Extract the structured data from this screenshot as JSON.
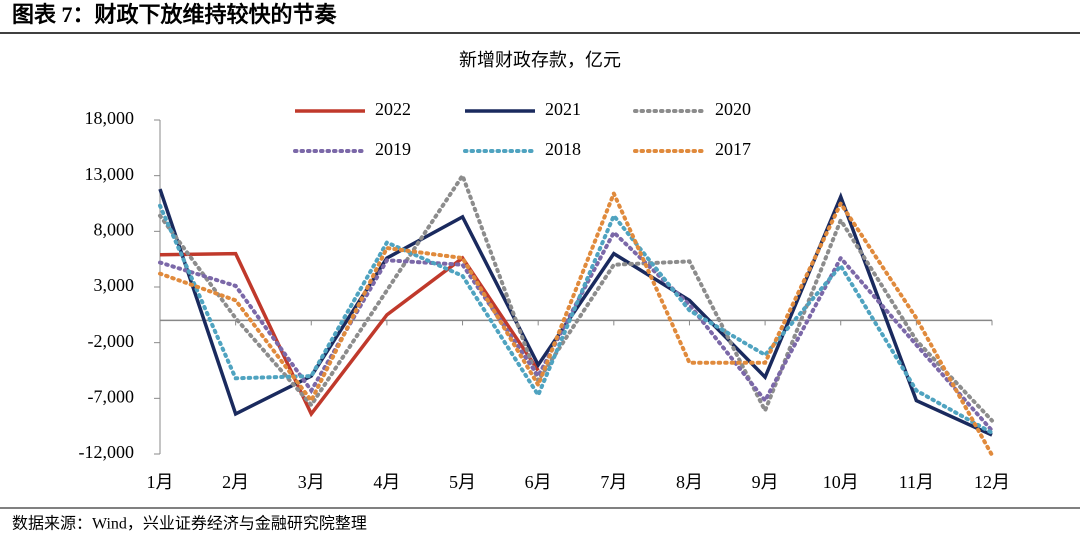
{
  "header": {
    "title": "图表 7：财政下放维持较快的节奏"
  },
  "chart_data": {
    "type": "line",
    "title": "新增财政存款，亿元",
    "categories": [
      "1月",
      "2月",
      "3月",
      "4月",
      "5月",
      "6月",
      "7月",
      "8月",
      "9月",
      "10月",
      "11月",
      "12月"
    ],
    "series": [
      {
        "name": "2022",
        "color": "#c0392b",
        "dash": "solid",
        "values": [
          5900,
          6000,
          -8400,
          500,
          5600,
          -4500,
          null,
          null,
          null,
          null,
          null,
          null
        ]
      },
      {
        "name": "2021",
        "color": "#1a2a5e",
        "dash": "solid",
        "values": [
          11800,
          -8400,
          -5000,
          5600,
          9300,
          -4000,
          6000,
          1800,
          -5100,
          11100,
          -7200,
          -10300
        ]
      },
      {
        "name": "2020",
        "color": "#8c8c8c",
        "dash": "dotted",
        "values": [
          9400,
          200,
          -7600,
          2700,
          13000,
          -5400,
          5000,
          5300,
          -8100,
          9000,
          -1800,
          -9000
        ]
      },
      {
        "name": "2019",
        "color": "#7b68a8",
        "dash": "dotted",
        "values": [
          5200,
          3100,
          -6300,
          5400,
          5000,
          -5000,
          7900,
          1400,
          -7200,
          5600,
          -2200,
          -9900
        ]
      },
      {
        "name": "2018",
        "color": "#4fa3c0",
        "dash": "dotted",
        "values": [
          10300,
          -5200,
          -5000,
          7000,
          4000,
          -6700,
          9400,
          900,
          -3100,
          4900,
          -6300,
          -10100
        ]
      },
      {
        "name": "2017",
        "color": "#e08a3c",
        "dash": "dotted",
        "values": [
          4200,
          1800,
          -7200,
          6500,
          5600,
          -5800,
          11400,
          -3800,
          -3800,
          10500,
          200,
          -12100
        ]
      }
    ],
    "ylim": [
      -12000,
      18000
    ],
    "yticks": [
      {
        "value": 18000,
        "label": "18,000"
      },
      {
        "value": 13000,
        "label": "13,000"
      },
      {
        "value": 8000,
        "label": "8,000"
      },
      {
        "value": 3000,
        "label": "3,000"
      },
      {
        "value": -2000,
        "label": "-2,000"
      },
      {
        "value": -7000,
        "label": "-7,000"
      },
      {
        "value": -12000,
        "label": "-12,000"
      }
    ],
    "legend": "top"
  },
  "footer": {
    "source": "数据来源：Wind，兴业证券经济与金融研究院整理"
  }
}
